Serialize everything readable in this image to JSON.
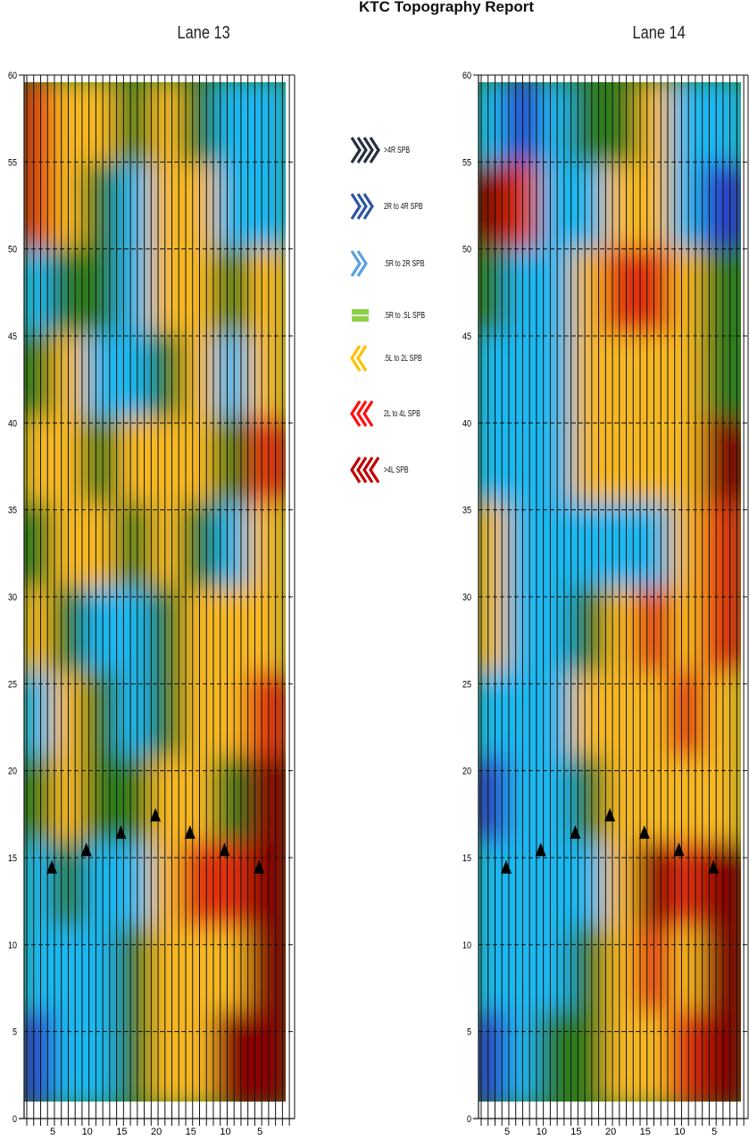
{
  "title": "KTC Topography Report",
  "level_colors": {
    "-3": "#0d1a8a",
    "-2": "#2a3ed0",
    "-1": "#1ab8f0",
    "0": "#2e7d1e",
    "1": "#f6b820",
    "2": "#e2300e",
    "3": "#8c0000"
  },
  "legend": [
    {
      "label": ">4R SPB",
      "icon": "chevron-right-4-icon",
      "color": "#27303f"
    },
    {
      "label": "2R to 4R SPB",
      "icon": "chevron-right-3-icon",
      "color": "#2d55a0"
    },
    {
      "label": ".5R to 2R SPB",
      "icon": "chevron-right-2-icon",
      "color": "#5aa0e0"
    },
    {
      "label": ".5R to .5L SPB",
      "icon": "equals-bar-icon",
      "color": "#8ccf4a"
    },
    {
      "label": ".5L to 2L SPB",
      "icon": "chevron-left-2-icon",
      "color": "#ffc000"
    },
    {
      "label": "2L to 4L SPB",
      "icon": "chevron-left-3-icon",
      "color": "#ff1010"
    },
    {
      "label": ">4L SPB",
      "icon": "chevron-left-4-icon",
      "color": "#c00000"
    }
  ],
  "chart_data": [
    {
      "type": "heatmap",
      "title": "Lane 13",
      "ylim": [
        0,
        60
      ],
      "yticks": [
        "0",
        "5",
        "10",
        "15",
        "20",
        "25",
        "30",
        "35",
        "40",
        "45",
        "50",
        "55",
        "60"
      ],
      "xticks": [
        "5",
        "10",
        "15",
        "20",
        "15",
        "10",
        "5"
      ],
      "grid": "dashed horizontal every 5",
      "row_ranges": [
        "55-60",
        "50-55",
        "45-50",
        "40-45",
        "35-40",
        "30-35",
        "25-30",
        "20-25",
        "15-20",
        "10-15",
        "5-10",
        "0-5"
      ],
      "values": [
        [
          2,
          1,
          1,
          0,
          1,
          0,
          -1,
          -1
        ],
        [
          2,
          1,
          0,
          -1,
          1,
          1,
          -1,
          -1
        ],
        [
          -1,
          0,
          0,
          -1,
          1,
          1,
          0,
          1
        ],
        [
          0,
          1,
          -1,
          -1,
          0,
          1,
          -1,
          1
        ],
        [
          1,
          1,
          0,
          1,
          1,
          1,
          0,
          2
        ],
        [
          0,
          1,
          1,
          0,
          1,
          0,
          -1,
          1
        ],
        [
          1,
          0,
          -1,
          -1,
          0,
          1,
          1,
          1
        ],
        [
          -1,
          1,
          0,
          -1,
          0,
          1,
          1,
          2
        ],
        [
          0,
          1,
          0,
          0,
          1,
          1,
          0,
          3
        ],
        [
          -1,
          0,
          -1,
          -1,
          1,
          2,
          2,
          3
        ],
        [
          -1,
          -1,
          -1,
          0,
          1,
          1,
          1,
          3
        ],
        [
          -2,
          -1,
          -1,
          0,
          1,
          1,
          3,
          3
        ]
      ],
      "markers": [
        {
          "x": "5",
          "y": 14.5
        },
        {
          "x": "10",
          "y": 15.5
        },
        {
          "x": "15",
          "y": 16.5
        },
        {
          "x": "20",
          "y": 17.5
        },
        {
          "x": "15",
          "y": 16.5
        },
        {
          "x": "10",
          "y": 15.5
        },
        {
          "x": "5",
          "y": 14.5
        }
      ]
    },
    {
      "type": "heatmap",
      "title": "Lane 14",
      "ylim": [
        0,
        60
      ],
      "yticks": [
        "0",
        "5",
        "10",
        "15",
        "20",
        "25",
        "30",
        "35",
        "40",
        "45",
        "50",
        "55",
        "60"
      ],
      "xticks": [
        "5",
        "10",
        "15",
        "20",
        "15",
        "10",
        "5"
      ],
      "grid": "dashed horizontal every 5",
      "row_ranges": [
        "55-60",
        "50-55",
        "45-50",
        "40-45",
        "35-40",
        "30-35",
        "25-30",
        "20-25",
        "15-20",
        "10-15",
        "5-10",
        "0-5"
      ],
      "values": [
        [
          -1,
          -2,
          -1,
          0,
          0,
          1,
          -1,
          -1
        ],
        [
          3,
          2,
          -1,
          -1,
          1,
          1,
          -1,
          -2
        ],
        [
          0,
          -1,
          -1,
          1,
          2,
          2,
          1,
          0
        ],
        [
          -1,
          -1,
          -1,
          1,
          1,
          1,
          1,
          0
        ],
        [
          -1,
          -1,
          -1,
          1,
          1,
          1,
          1,
          3
        ],
        [
          1,
          -1,
          -1,
          -1,
          -1,
          -1,
          1,
          2
        ],
        [
          1,
          -1,
          -1,
          0,
          1,
          2,
          1,
          2
        ],
        [
          -1,
          -1,
          -1,
          1,
          1,
          1,
          2,
          1
        ],
        [
          -2,
          -1,
          -1,
          0,
          1,
          1,
          1,
          1
        ],
        [
          -1,
          -1,
          -1,
          -1,
          1,
          3,
          2,
          3
        ],
        [
          -1,
          -1,
          -1,
          0,
          1,
          2,
          1,
          3
        ],
        [
          -2,
          -1,
          0,
          0,
          1,
          1,
          2,
          3
        ]
      ],
      "markers": [
        {
          "x": "5",
          "y": 14.5
        },
        {
          "x": "10",
          "y": 15.5
        },
        {
          "x": "15",
          "y": 16.5
        },
        {
          "x": "20",
          "y": 17.5
        },
        {
          "x": "15",
          "y": 16.5
        },
        {
          "x": "10",
          "y": 15.5
        },
        {
          "x": "5",
          "y": 14.5
        }
      ]
    }
  ]
}
